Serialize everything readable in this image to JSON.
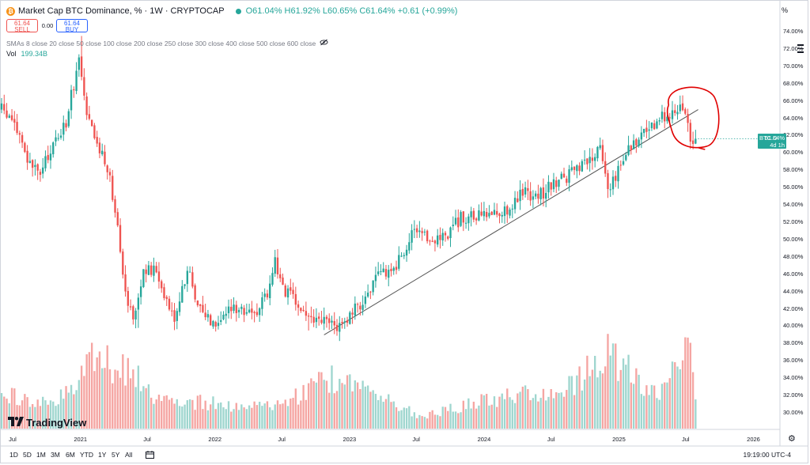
{
  "header": {
    "symbol_title": "Market Cap BTC Dominance, % · 1W · CRYPTOCAP",
    "ohlc_text": "O61.04% H61.92% L60.65% C61.64% +0.61 (+0.99%)",
    "coin_glyph": "₿"
  },
  "trade": {
    "sell_price": "61.64",
    "sell_label": "SELL",
    "spread": "0.00",
    "buy_price": "61.64",
    "buy_label": "BUY"
  },
  "indicators": {
    "smas_label": "SMAs 8 close 20 close 50 close 100 close 200 close 250 close 300 close 400 close 500 close 600 close",
    "vol_label": "Vol",
    "vol_value": "199.34B"
  },
  "price_axis": {
    "unit": "%",
    "labels": [
      "74.00%",
      "72.00%",
      "70.00%",
      "68.00%",
      "66.00%",
      "64.00%",
      "62.00%",
      "60.00%",
      "58.00%",
      "56.00%",
      "54.00%",
      "52.00%",
      "50.00%",
      "48.00%",
      "46.00%",
      "44.00%",
      "42.00%",
      "40.00%",
      "38.00%",
      "36.00%",
      "34.00%",
      "32.00%",
      "30.00%"
    ]
  },
  "last_price_badge": {
    "symbol": "BTC.D",
    "value": "61.64%",
    "countdown": "4d 1h",
    "color": "#26a69a"
  },
  "time_axis": {
    "labels": [
      "Jul",
      "2021",
      "Jul",
      "2022",
      "Jul",
      "2023",
      "Jul",
      "2024",
      "Jul",
      "2025",
      "Jul",
      "2026"
    ]
  },
  "branding": {
    "logo_text": "TradingView"
  },
  "timeframes": [
    "1D",
    "5D",
    "1M",
    "3M",
    "6M",
    "YTD",
    "1Y",
    "5Y",
    "All"
  ],
  "clock": "19:19:00 UTC-4",
  "colors": {
    "up": "#26a69a",
    "down": "#ef5350",
    "vol_up": "#9fd6cf",
    "vol_down": "#f5a5a2",
    "annotation": "#e00000",
    "trendline": "#555555"
  },
  "chart_data": {
    "type": "candlestick",
    "series_name": "BTC.D",
    "interval": "1W",
    "ylim": [
      29,
      75.5
    ],
    "x_range": [
      "2020-06",
      "2026-03"
    ],
    "keyframes": [
      {
        "date": "2020-06-01",
        "value": 65
      },
      {
        "date": "2020-07-06",
        "value": 63.5
      },
      {
        "date": "2020-08-10",
        "value": 59
      },
      {
        "date": "2020-09-14",
        "value": 57.5
      },
      {
        "date": "2020-10-19",
        "value": 61
      },
      {
        "date": "2020-11-23",
        "value": 63.5
      },
      {
        "date": "2020-12-28",
        "value": 71
      },
      {
        "date": "2021-01-18",
        "value": 64
      },
      {
        "date": "2021-02-15",
        "value": 61
      },
      {
        "date": "2021-03-15",
        "value": 58.5
      },
      {
        "date": "2021-04-12",
        "value": 52
      },
      {
        "date": "2021-05-03",
        "value": 44
      },
      {
        "date": "2021-05-24",
        "value": 41
      },
      {
        "date": "2021-06-21",
        "value": 46
      },
      {
        "date": "2021-07-19",
        "value": 46.5
      },
      {
        "date": "2021-08-16",
        "value": 44
      },
      {
        "date": "2021-09-13",
        "value": 41
      },
      {
        "date": "2021-10-18",
        "value": 46.5
      },
      {
        "date": "2021-11-22",
        "value": 42
      },
      {
        "date": "2021-12-27",
        "value": 40.5
      },
      {
        "date": "2022-01-31",
        "value": 41.5
      },
      {
        "date": "2022-03-07",
        "value": 42.5
      },
      {
        "date": "2022-04-11",
        "value": 41
      },
      {
        "date": "2022-05-23",
        "value": 44
      },
      {
        "date": "2022-06-13",
        "value": 47.5
      },
      {
        "date": "2022-07-11",
        "value": 44
      },
      {
        "date": "2022-08-22",
        "value": 42
      },
      {
        "date": "2022-09-26",
        "value": 40.5
      },
      {
        "date": "2022-10-31",
        "value": 40.5
      },
      {
        "date": "2022-11-21",
        "value": 40
      },
      {
        "date": "2023-01-02",
        "value": 41
      },
      {
        "date": "2023-02-13",
        "value": 43.5
      },
      {
        "date": "2023-03-27",
        "value": 46
      },
      {
        "date": "2023-05-08",
        "value": 47
      },
      {
        "date": "2023-06-19",
        "value": 50.5
      },
      {
        "date": "2023-08-07",
        "value": 50
      },
      {
        "date": "2023-09-18",
        "value": 50.5
      },
      {
        "date": "2023-10-30",
        "value": 52.5
      },
      {
        "date": "2023-12-04",
        "value": 52.5
      },
      {
        "date": "2024-01-22",
        "value": 53
      },
      {
        "date": "2024-03-04",
        "value": 53.5
      },
      {
        "date": "2024-04-15",
        "value": 55.5
      },
      {
        "date": "2024-05-27",
        "value": 55
      },
      {
        "date": "2024-07-08",
        "value": 56.5
      },
      {
        "date": "2024-08-19",
        "value": 57.5
      },
      {
        "date": "2024-09-30",
        "value": 58.5
      },
      {
        "date": "2024-11-11",
        "value": 60.5
      },
      {
        "date": "2024-12-02",
        "value": 56
      },
      {
        "date": "2024-12-23",
        "value": 57.5
      },
      {
        "date": "2025-02-03",
        "value": 61
      },
      {
        "date": "2025-03-17",
        "value": 62.5
      },
      {
        "date": "2025-04-28",
        "value": 64
      },
      {
        "date": "2025-06-09",
        "value": 65.5
      },
      {
        "date": "2025-06-30",
        "value": 65
      },
      {
        "date": "2025-07-14",
        "value": 62
      },
      {
        "date": "2025-07-21",
        "value": 61.04
      },
      {
        "date": "2025-07-28",
        "value": 61.64
      }
    ],
    "extremes": [
      {
        "date": "2021-01-04",
        "high": 73.5
      },
      {
        "date": "2021-06-07",
        "low": 39.8
      },
      {
        "date": "2022-09-12",
        "low": 39.5
      },
      {
        "date": "2024-12-02",
        "low": 54.8
      },
      {
        "date": "2025-06-23",
        "high": 66
      }
    ],
    "volume_ylim": [
      0,
      100
    ],
    "volume_keyframes": [
      {
        "date": "2020-06-01",
        "value": 40
      },
      {
        "date": "2020-10-19",
        "value": 30
      },
      {
        "date": "2020-12-28",
        "value": 55
      },
      {
        "date": "2021-01-11",
        "value": 85
      },
      {
        "date": "2021-05-17",
        "value": 70
      },
      {
        "date": "2021-07-19",
        "value": 35
      },
      {
        "date": "2022-06-13",
        "value": 25
      },
      {
        "date": "2022-11-14",
        "value": 60
      },
      {
        "date": "2023-03-13",
        "value": 40
      },
      {
        "date": "2023-07-10",
        "value": 15
      },
      {
        "date": "2024-03-11",
        "value": 40
      },
      {
        "date": "2024-08-05",
        "value": 45
      },
      {
        "date": "2024-12-02",
        "value": 90
      },
      {
        "date": "2025-04-07",
        "value": 40
      },
      {
        "date": "2025-07-14",
        "value": 100
      },
      {
        "date": "2025-07-28",
        "value": 30
      }
    ],
    "trendline": {
      "from": {
        "date": "2022-10-24",
        "value": 39
      },
      "to": {
        "date": "2025-08-04",
        "value": 65
      }
    },
    "annotation": {
      "type": "hand-drawn ellipse",
      "color": "#e00000",
      "around": {
        "from": "2025-05",
        "to": "2025-08"
      }
    }
  }
}
